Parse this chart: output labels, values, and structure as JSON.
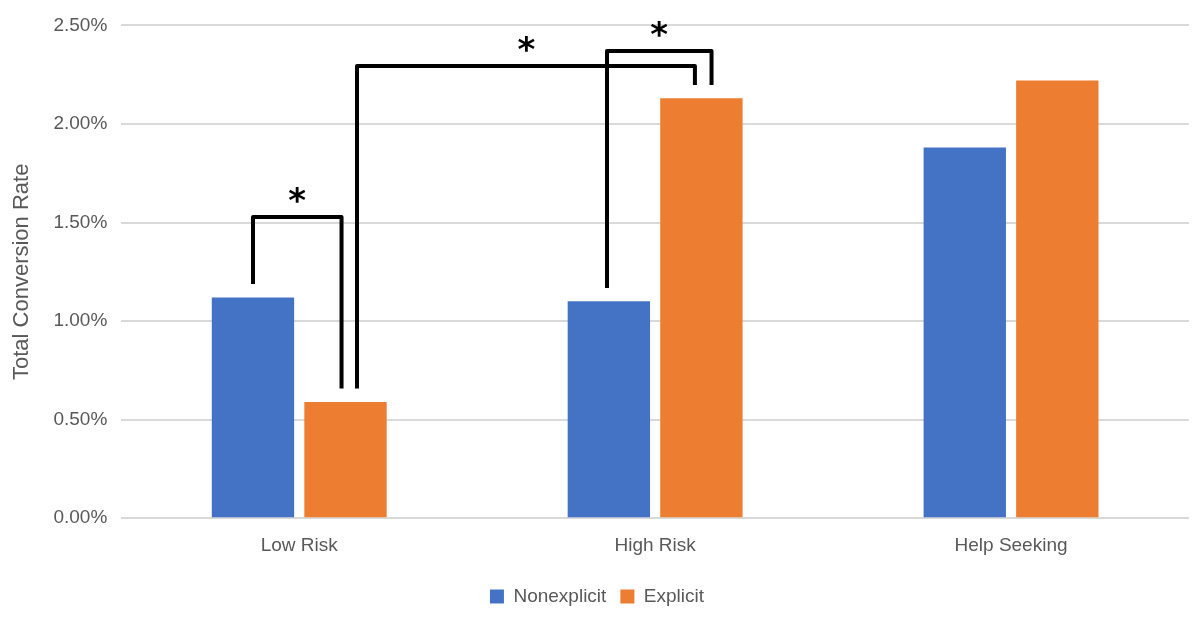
{
  "chart_data": {
    "type": "bar",
    "ylabel": "Total Conversion Rate",
    "categories": [
      "Low Risk",
      "High Risk",
      "Help Seeking"
    ],
    "series": [
      {
        "name": "Nonexplicit",
        "color": "#4472c4",
        "values": [
          1.12,
          1.1,
          1.88
        ]
      },
      {
        "name": "Explicit",
        "color": "#ed7d31",
        "values": [
          0.59,
          2.13,
          2.22
        ]
      }
    ],
    "ylim": [
      0,
      2.5
    ],
    "yticks": [
      {
        "value": 0,
        "label": "0.00%"
      },
      {
        "value": 0.5,
        "label": "0.50%"
      },
      {
        "value": 1,
        "label": "1.00%"
      },
      {
        "value": 1.5,
        "label": "1.50%"
      },
      {
        "value": 2,
        "label": "2.00%"
      },
      {
        "value": 2.5,
        "label": "2.50%"
      }
    ],
    "grid": "y",
    "legend": "bottom",
    "annotations": [
      "*",
      "*",
      "*"
    ]
  }
}
